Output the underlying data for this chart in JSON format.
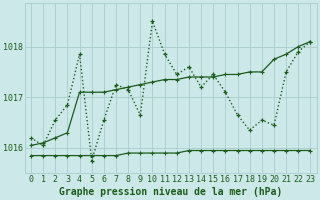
{
  "title": "Graphe pression niveau de la mer (hPa)",
  "bg_color": "#cce8e8",
  "line_color": "#1a5c1a",
  "grid_color": "#aacccc",
  "hours": [
    0,
    1,
    2,
    3,
    4,
    5,
    6,
    7,
    8,
    9,
    10,
    11,
    12,
    13,
    14,
    15,
    16,
    17,
    18,
    19,
    20,
    21,
    22,
    23
  ],
  "main_values": [
    1016.2,
    1016.05,
    1016.55,
    1016.85,
    1017.85,
    1015.75,
    1016.55,
    1017.25,
    1017.15,
    1016.65,
    1018.5,
    1017.85,
    1017.45,
    1017.6,
    1017.2,
    1017.45,
    1017.1,
    1016.65,
    1016.35,
    1016.55,
    1016.45,
    1017.5,
    1017.9,
    1018.1
  ],
  "min_values": [
    1015.85,
    1015.85,
    1015.85,
    1015.85,
    1015.85,
    1015.85,
    1015.85,
    1015.85,
    1015.9,
    1015.9,
    1015.9,
    1015.9,
    1015.9,
    1015.95,
    1015.95,
    1015.95,
    1015.95,
    1015.95,
    1015.95,
    1015.95,
    1015.95,
    1015.95,
    1015.95,
    1015.95
  ],
  "max_values": [
    1016.05,
    1016.1,
    1016.2,
    1016.3,
    1017.1,
    1017.1,
    1017.1,
    1017.15,
    1017.2,
    1017.25,
    1017.3,
    1017.35,
    1017.35,
    1017.4,
    1017.4,
    1017.4,
    1017.45,
    1017.45,
    1017.5,
    1017.5,
    1017.75,
    1017.85,
    1018.0,
    1018.1
  ],
  "ylim": [
    1015.5,
    1018.85
  ],
  "yticks": [
    1016,
    1017,
    1018
  ],
  "tick_fontsize": 6.0,
  "title_fontsize": 7.0
}
